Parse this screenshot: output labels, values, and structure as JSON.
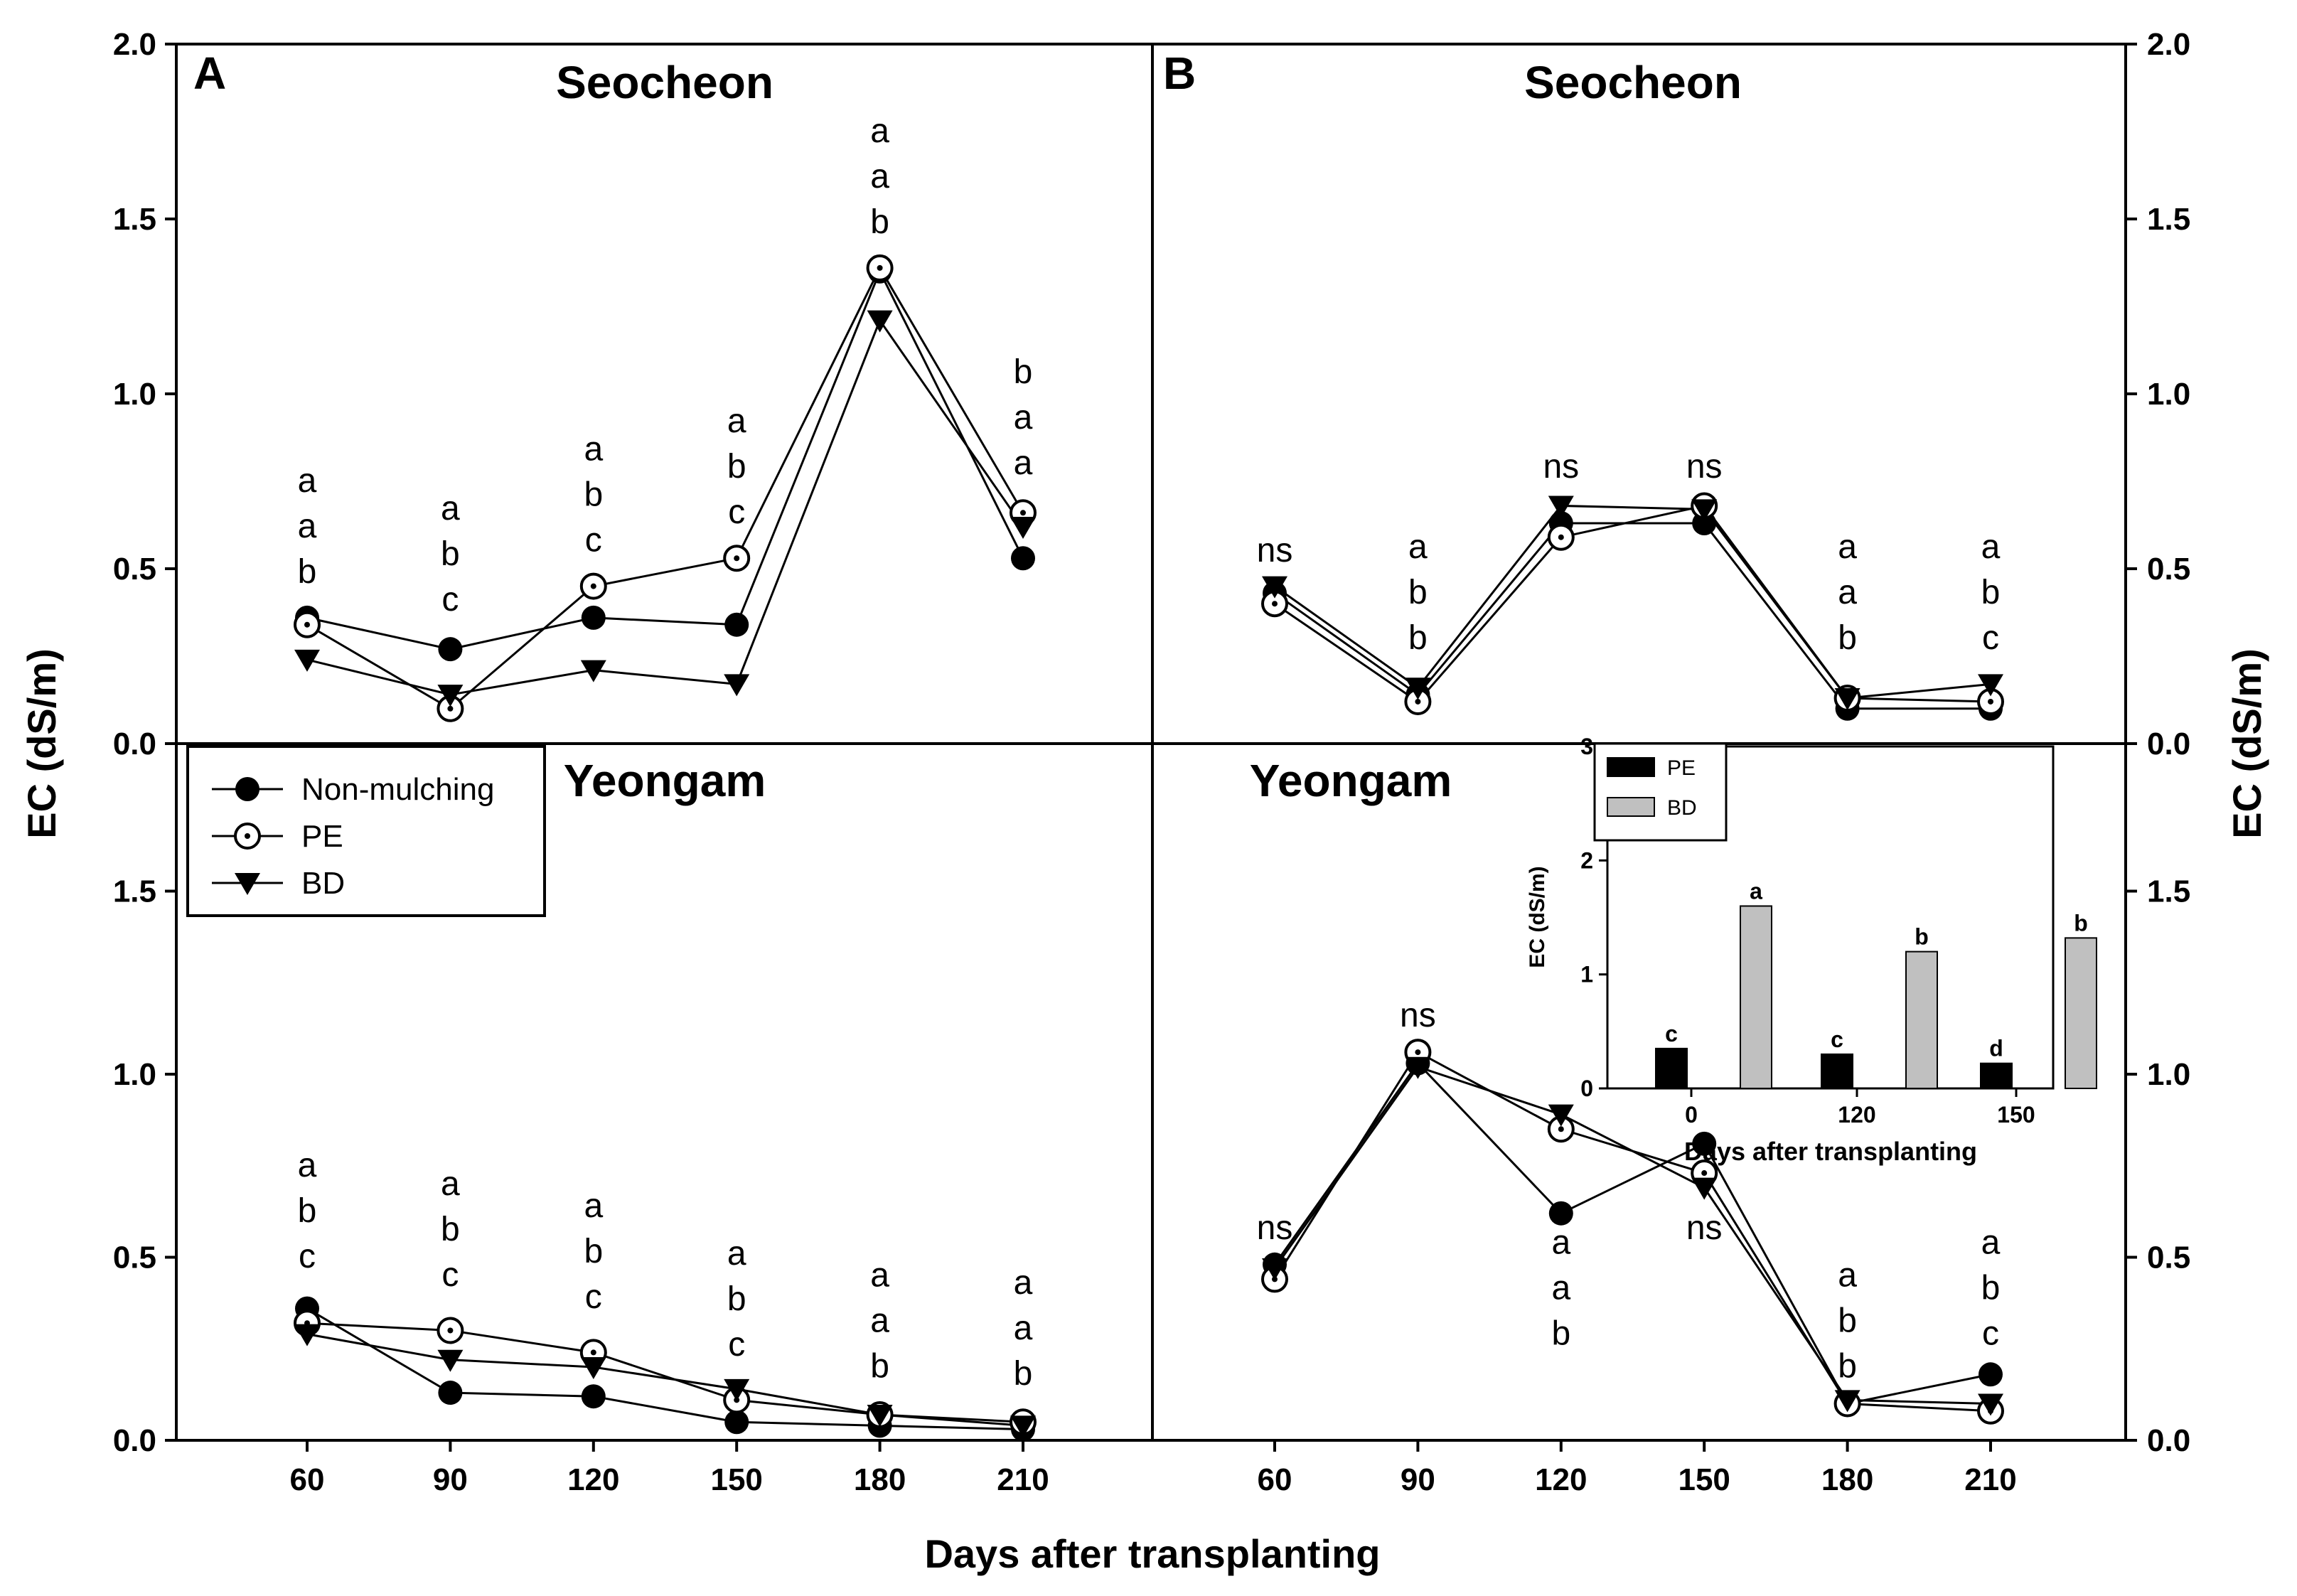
{
  "chart_data": {
    "type": "line",
    "x": [
      60,
      90,
      120,
      150,
      180,
      210
    ],
    "xlabel": "Days after transplanting",
    "ylabel": "EC (dS/m)",
    "ylim": [
      0,
      2
    ],
    "yticks_top": [
      "0.0",
      "0.5",
      "1.0",
      "1.5",
      "2.0"
    ],
    "yticks_bottom": [
      "0.0",
      "0.5",
      "1.0",
      "1.5"
    ],
    "legend": [
      "Non-mulching",
      "PE",
      "BD"
    ],
    "panels": [
      {
        "id": "A-top",
        "label": "A",
        "title": "Seocheon",
        "series": [
          {
            "name": "Non-mulching",
            "values": [
              0.36,
              0.27,
              0.36,
              0.34,
              1.35,
              0.53
            ]
          },
          {
            "name": "PE",
            "values": [
              0.34,
              0.1,
              0.45,
              0.53,
              1.36,
              0.66
            ]
          },
          {
            "name": "BD",
            "values": [
              0.24,
              0.14,
              0.21,
              0.17,
              1.21,
              0.62
            ]
          }
        ],
        "annotations": [
          {
            "x": 60,
            "lines": [
              "a",
              "a",
              "b"
            ],
            "y": 0.72
          },
          {
            "x": 90,
            "lines": [
              "a",
              "b",
              "c"
            ],
            "y": 0.64
          },
          {
            "x": 120,
            "lines": [
              "a",
              "b",
              "c"
            ],
            "y": 0.81
          },
          {
            "x": 150,
            "lines": [
              "a",
              "b",
              "c"
            ],
            "y": 0.89
          },
          {
            "x": 180,
            "lines": [
              "a",
              "a",
              "b"
            ],
            "y": 1.72
          },
          {
            "x": 210,
            "lines": [
              "b",
              "a",
              "a"
            ],
            "y": 1.03
          }
        ]
      },
      {
        "id": "B-top",
        "label": "B",
        "title": "Seocheon",
        "series": [
          {
            "name": "Non-mulching",
            "values": [
              0.43,
              0.14,
              0.63,
              0.63,
              0.1,
              0.1
            ]
          },
          {
            "name": "PE",
            "values": [
              0.4,
              0.12,
              0.59,
              0.68,
              0.13,
              0.12
            ]
          },
          {
            "name": "BD",
            "values": [
              0.45,
              0.16,
              0.68,
              0.67,
              0.13,
              0.17
            ]
          }
        ],
        "annotations": [
          {
            "x": 60,
            "lines": [
              "ns"
            ],
            "y": 0.52
          },
          {
            "x": 90,
            "lines": [
              "a",
              "b",
              "b"
            ],
            "y": 0.53
          },
          {
            "x": 120,
            "lines": [
              "ns"
            ],
            "y": 0.76
          },
          {
            "x": 150,
            "lines": [
              "ns"
            ],
            "y": 0.76
          },
          {
            "x": 180,
            "lines": [
              "a",
              "a",
              "b"
            ],
            "y": 0.53
          },
          {
            "x": 210,
            "lines": [
              "a",
              "b",
              "c"
            ],
            "y": 0.53
          }
        ]
      },
      {
        "id": "A-bottom",
        "title": "Yeongam",
        "series": [
          {
            "name": "Non-mulching",
            "values": [
              0.36,
              0.13,
              0.12,
              0.05,
              0.04,
              0.03
            ]
          },
          {
            "name": "PE",
            "values": [
              0.32,
              0.3,
              0.24,
              0.11,
              0.07,
              0.05
            ]
          },
          {
            "name": "BD",
            "values": [
              0.29,
              0.22,
              0.2,
              0.14,
              0.07,
              0.04
            ]
          }
        ],
        "annotations": [
          {
            "x": 60,
            "lines": [
              "a",
              "b",
              "c"
            ],
            "y": 0.72
          },
          {
            "x": 90,
            "lines": [
              "a",
              "b",
              "c"
            ],
            "y": 0.67
          },
          {
            "x": 120,
            "lines": [
              "a",
              "b",
              "c"
            ],
            "y": 0.61
          },
          {
            "x": 150,
            "lines": [
              "a",
              "b",
              "c"
            ],
            "y": 0.48
          },
          {
            "x": 180,
            "lines": [
              "a",
              "a",
              "b"
            ],
            "y": 0.42
          },
          {
            "x": 210,
            "lines": [
              "a",
              "a",
              "b"
            ],
            "y": 0.4
          }
        ]
      },
      {
        "id": "B-bottom",
        "title": "Yeongam",
        "series": [
          {
            "name": "Non-mulching",
            "values": [
              0.48,
              1.03,
              0.62,
              0.81,
              0.1,
              0.18
            ]
          },
          {
            "name": "PE",
            "values": [
              0.44,
              1.06,
              0.85,
              0.73,
              0.1,
              0.08
            ]
          },
          {
            "name": "BD",
            "values": [
              0.47,
              1.02,
              0.89,
              0.69,
              0.11,
              0.1
            ]
          }
        ],
        "annotations": [
          {
            "x": 60,
            "lines": [
              "ns"
            ],
            "y": 0.55
          },
          {
            "x": 90,
            "lines": [
              "ns"
            ],
            "y": 1.13
          },
          {
            "x": 120,
            "lines": [
              "a",
              "a",
              "b"
            ],
            "y": 0.51
          },
          {
            "x": 150,
            "lines": [
              "ns"
            ],
            "y": 0.55
          },
          {
            "x": 180,
            "lines": [
              "a",
              "b",
              "b"
            ],
            "y": 0.42
          },
          {
            "x": 210,
            "lines": [
              "a",
              "b",
              "c"
            ],
            "y": 0.51
          }
        ]
      }
    ],
    "inset": {
      "type": "bar",
      "categories": [
        "0",
        "120",
        "150"
      ],
      "series": [
        {
          "name": "PE",
          "values": [
            0.35,
            0.3,
            0.22
          ],
          "labels": [
            "c",
            "c",
            "d"
          ],
          "color": "#000000"
        },
        {
          "name": "BD",
          "values": [
            1.6,
            1.2,
            1.32
          ],
          "labels": [
            "a",
            "b",
            "b"
          ],
          "color": "#c0c0c0"
        }
      ],
      "xlabel": "Days after transplanting",
      "ylabel": "EC (dS/m)",
      "ylim": [
        0,
        3
      ],
      "yticks": [
        "0",
        "1",
        "2",
        "3"
      ]
    }
  }
}
